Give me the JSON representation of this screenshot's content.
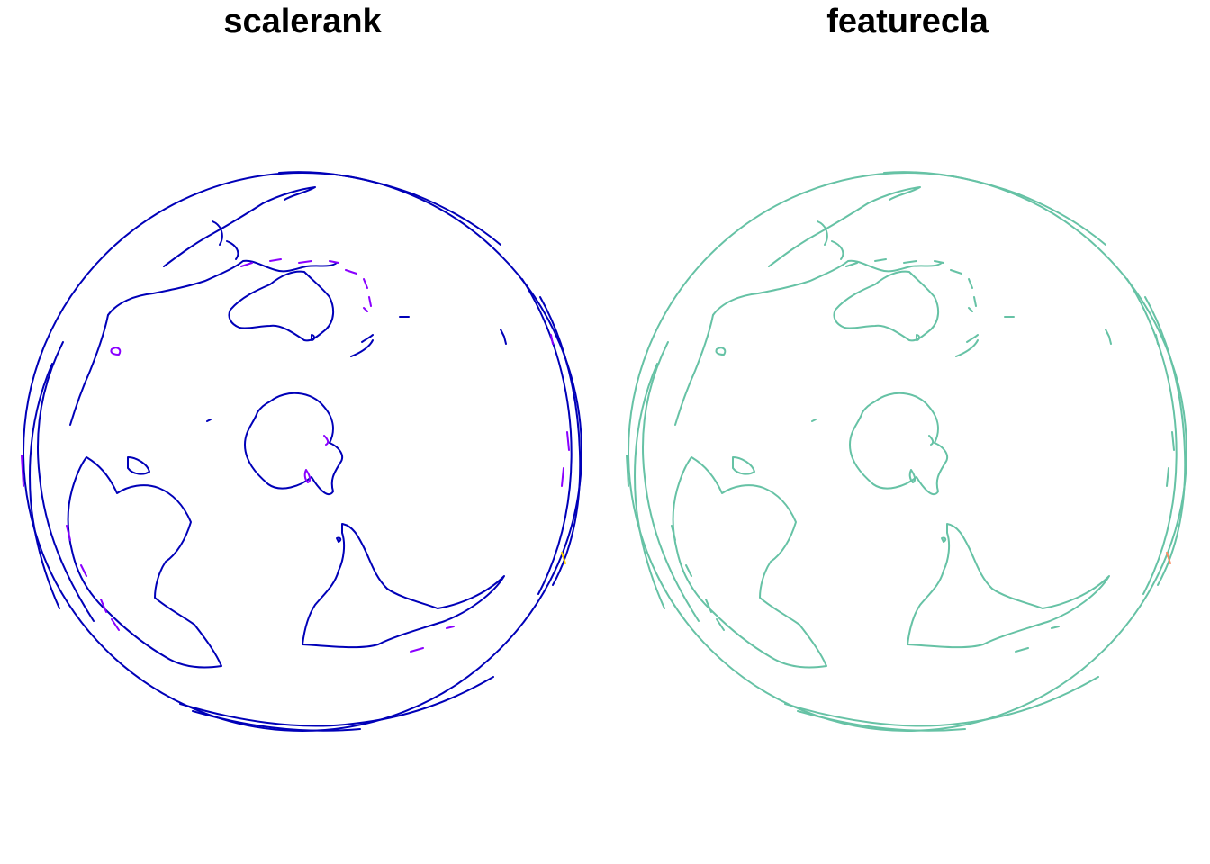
{
  "panels": [
    {
      "id": "left",
      "title": "scalerank",
      "base_color": "#0000B8",
      "minor_color": "#8A00FF",
      "accent_color": "#FFD400"
    },
    {
      "id": "right",
      "title": "featurecla",
      "base_color": "#66C2A5",
      "minor_color": "#66C2A5",
      "accent_color": "#FC8D62"
    }
  ]
}
